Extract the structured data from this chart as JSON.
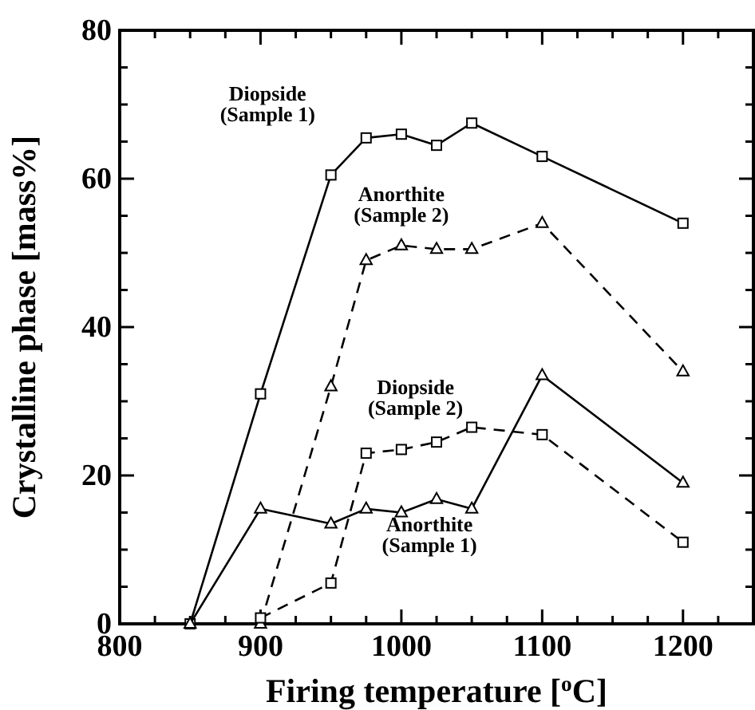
{
  "chart_data": {
    "type": "line",
    "xlabel": "Firing temperature [$^{o}$C]",
    "ylabel": "Crystalline phase [mass%]",
    "xlim": [
      800,
      1250
    ],
    "ylim": [
      0,
      80
    ],
    "xticks": [
      800,
      {
        "value": 825,
        "label": null
      },
      {
        "value": 850,
        "label": null
      },
      {
        "value": 875,
        "label": null
      },
      900,
      {
        "value": 925,
        "label": null
      },
      {
        "value": 950,
        "label": null
      },
      {
        "value": 975,
        "label": null
      },
      1000,
      {
        "value": 1025,
        "label": null
      },
      {
        "value": 1050,
        "label": null
      },
      {
        "value": 1075,
        "label": null
      },
      1100,
      {
        "value": 1125,
        "label": null
      },
      {
        "value": 1150,
        "label": null
      },
      {
        "value": 1175,
        "label": null
      },
      1200,
      {
        "value": 1225,
        "label": null
      }
    ],
    "yticks": [
      0,
      {
        "value": 5,
        "label": null
      },
      {
        "value": 10,
        "label": null
      },
      {
        "value": 15,
        "label": null
      },
      20,
      {
        "value": 25,
        "label": null
      },
      {
        "value": 30,
        "label": null
      },
      {
        "value": 35,
        "label": null
      },
      40,
      {
        "value": 45,
        "label": null
      },
      {
        "value": 50,
        "label": null
      },
      {
        "value": 55,
        "label": null
      },
      60,
      {
        "value": 65,
        "label": null
      },
      {
        "value": 70,
        "label": null
      },
      {
        "value": 75,
        "label": null
      },
      80
    ],
    "grid": false,
    "series": [
      {
        "name": "Diopside (Sample 1)",
        "color": "#000000",
        "marker": "square",
        "line_style": "solid",
        "x": [
          850,
          900,
          950,
          975,
          1000,
          1025,
          1050,
          1100,
          1200
        ],
        "values": [
          0,
          31,
          60.5,
          65.5,
          66,
          64.5,
          67.5,
          63,
          54
        ]
      },
      {
        "name": "Anorthite (Sample 2)",
        "color": "#000000",
        "marker": "triangle",
        "line_style": "dashed",
        "x": [
          900,
          950,
          975,
          1000,
          1025,
          1050,
          1100,
          1200
        ],
        "values": [
          0,
          32,
          49,
          51,
          50.5,
          50.5,
          54,
          34
        ]
      },
      {
        "name": "Diopside (Sample 2)",
        "color": "#000000",
        "marker": "square",
        "line_style": "dashed",
        "x": [
          900,
          950,
          975,
          1000,
          1025,
          1050,
          1100,
          1200
        ],
        "values": [
          0.8,
          5.5,
          23,
          23.5,
          24.5,
          26.5,
          25.5,
          11
        ]
      },
      {
        "name": "Anorthite (Sample 1)",
        "color": "#000000",
        "marker": "triangle",
        "line_style": "solid",
        "x": [
          850,
          900,
          950,
          975,
          1000,
          1025,
          1050,
          1100,
          1200
        ],
        "values": [
          0,
          15.5,
          13.5,
          15.5,
          15,
          16.8,
          15.5,
          33.5,
          19
        ]
      }
    ]
  }
}
